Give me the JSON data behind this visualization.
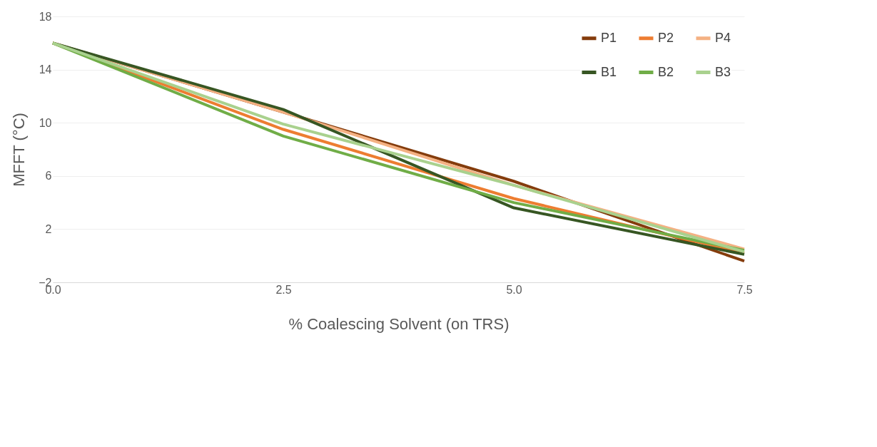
{
  "chart_data": {
    "type": "line",
    "xlabel": "% Coalescing Solvent (on TRS)",
    "ylabel": "MFFT (°C)",
    "x": [
      0,
      2.5,
      5,
      7.5
    ],
    "xlim": [
      0,
      7.5
    ],
    "xticks": [
      {
        "value": 0,
        "label": "0.0"
      },
      {
        "value": 2.5,
        "label": "2.5"
      },
      {
        "value": 5,
        "label": "5.0"
      },
      {
        "value": 7.5,
        "label": "7.5"
      }
    ],
    "ylim": [
      -2,
      18
    ],
    "yticks": [
      -2,
      2,
      6,
      10,
      14,
      18
    ],
    "grid": "y",
    "legend": "top right",
    "marker": "none",
    "line_style": "solid",
    "series": [
      {
        "name": "P1",
        "color": "#843c0c",
        "values": [
          16,
          10.8,
          5.6,
          -0.4
        ]
      },
      {
        "name": "P2",
        "color": "#ed7d31",
        "values": [
          16,
          9.5,
          4.3,
          0.2
        ]
      },
      {
        "name": "P4",
        "color": "#f4b183",
        "values": [
          16,
          10.8,
          5.3,
          0.5
        ]
      },
      {
        "name": "B1",
        "color": "#375623",
        "values": [
          16,
          11.0,
          3.6,
          0.1
        ]
      },
      {
        "name": "B2",
        "color": "#70ad47",
        "values": [
          16,
          9.0,
          4.0,
          0.4
        ]
      },
      {
        "name": "B3",
        "color": "#a9d18e",
        "values": [
          16,
          9.9,
          5.3,
          0.3
        ]
      }
    ]
  }
}
